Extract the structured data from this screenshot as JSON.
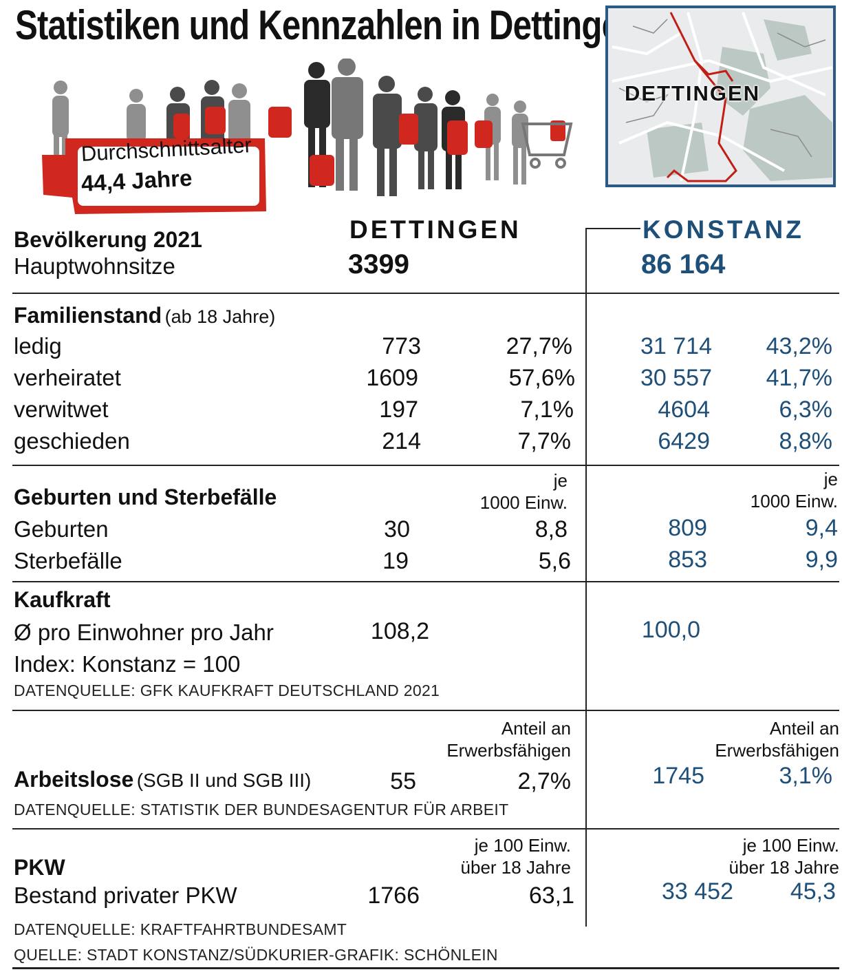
{
  "title": "Statistiken und Kennzahlen in Dettingen",
  "badge": {
    "line1": "Durchschnittsalter",
    "line2": "44,4 Jahre"
  },
  "map": {
    "label": "DETTINGEN"
  },
  "columns": {
    "dettingen": "DETTINGEN",
    "konstanz": "KONSTANZ"
  },
  "population": {
    "heading": "Bevölkerung 2021",
    "subheading": "Hauptwohnsitze",
    "dettingen": "3399",
    "konstanz": "86 164"
  },
  "familienstand": {
    "heading": "Familienstand",
    "note": "(ab 18 Jahre)",
    "rows": [
      {
        "label": "ledig",
        "d_num": "773",
        "d_pct": "27,7%",
        "k_num": "31 714",
        "k_pct": "43,2%"
      },
      {
        "label": "verheiratet",
        "d_num": "1609",
        "d_pct": "57,6%",
        "k_num": "30 557",
        "k_pct": "41,7%"
      },
      {
        "label": "verwitwet",
        "d_num": "197",
        "d_pct": "7,1%",
        "k_num": "4604",
        "k_pct": "6,3%"
      },
      {
        "label": "geschieden",
        "d_num": "214",
        "d_pct": "7,7%",
        "k_num": "6429",
        "k_pct": "8,8%"
      }
    ]
  },
  "geburten": {
    "heading": "Geburten und Sterbefälle",
    "unit_line1": "je",
    "unit_line2": "1000 Einw.",
    "rows": [
      {
        "label": "Geburten",
        "d_num": "30",
        "d_rate": "8,8",
        "k_num": "809",
        "k_rate": "9,4"
      },
      {
        "label": "Sterbefälle",
        "d_num": "19",
        "d_rate": "5,6",
        "k_num": "853",
        "k_rate": "9,9"
      }
    ]
  },
  "kaufkraft": {
    "heading": "Kaufkraft",
    "line1": "Ø pro Einwohner pro Jahr",
    "line2": "Index: Konstanz = 100",
    "dettingen": "108,2",
    "konstanz": "100,0",
    "source": "DATENQUELLE: GFK KAUFKRAFT DEUTSCHLAND 2021"
  },
  "arbeitslose": {
    "heading": "Arbeitslose",
    "note": "(SGB II und SGB III)",
    "unit_line1": "Anteil an",
    "unit_line2": "Erwerbsfähigen",
    "d_num": "55",
    "d_pct": "2,7%",
    "k_num": "1745",
    "k_pct": "3,1%",
    "source": "DATENQUELLE: STATISTIK DER BUNDESAGENTUR FÜR ARBEIT"
  },
  "pkw": {
    "heading": "PKW",
    "line1": "Bestand privater PKW",
    "unit_line1": "je 100 Einw.",
    "unit_line2": "über 18 Jahre",
    "d_num": "1766",
    "d_rate": "63,1",
    "k_num": "33 452",
    "k_rate": "45,3",
    "source": "DATENQUELLE: KRAFTFAHRTBUNDESAMT"
  },
  "footer": "QUELLE: STADT KONSTANZ/SÜDKURIER-GRAFIK: SCHÖNLEIN",
  "colors": {
    "konstanz_blue": "#1e4f79",
    "accent_red": "#d0281e",
    "map_border": "#2b5a86"
  }
}
